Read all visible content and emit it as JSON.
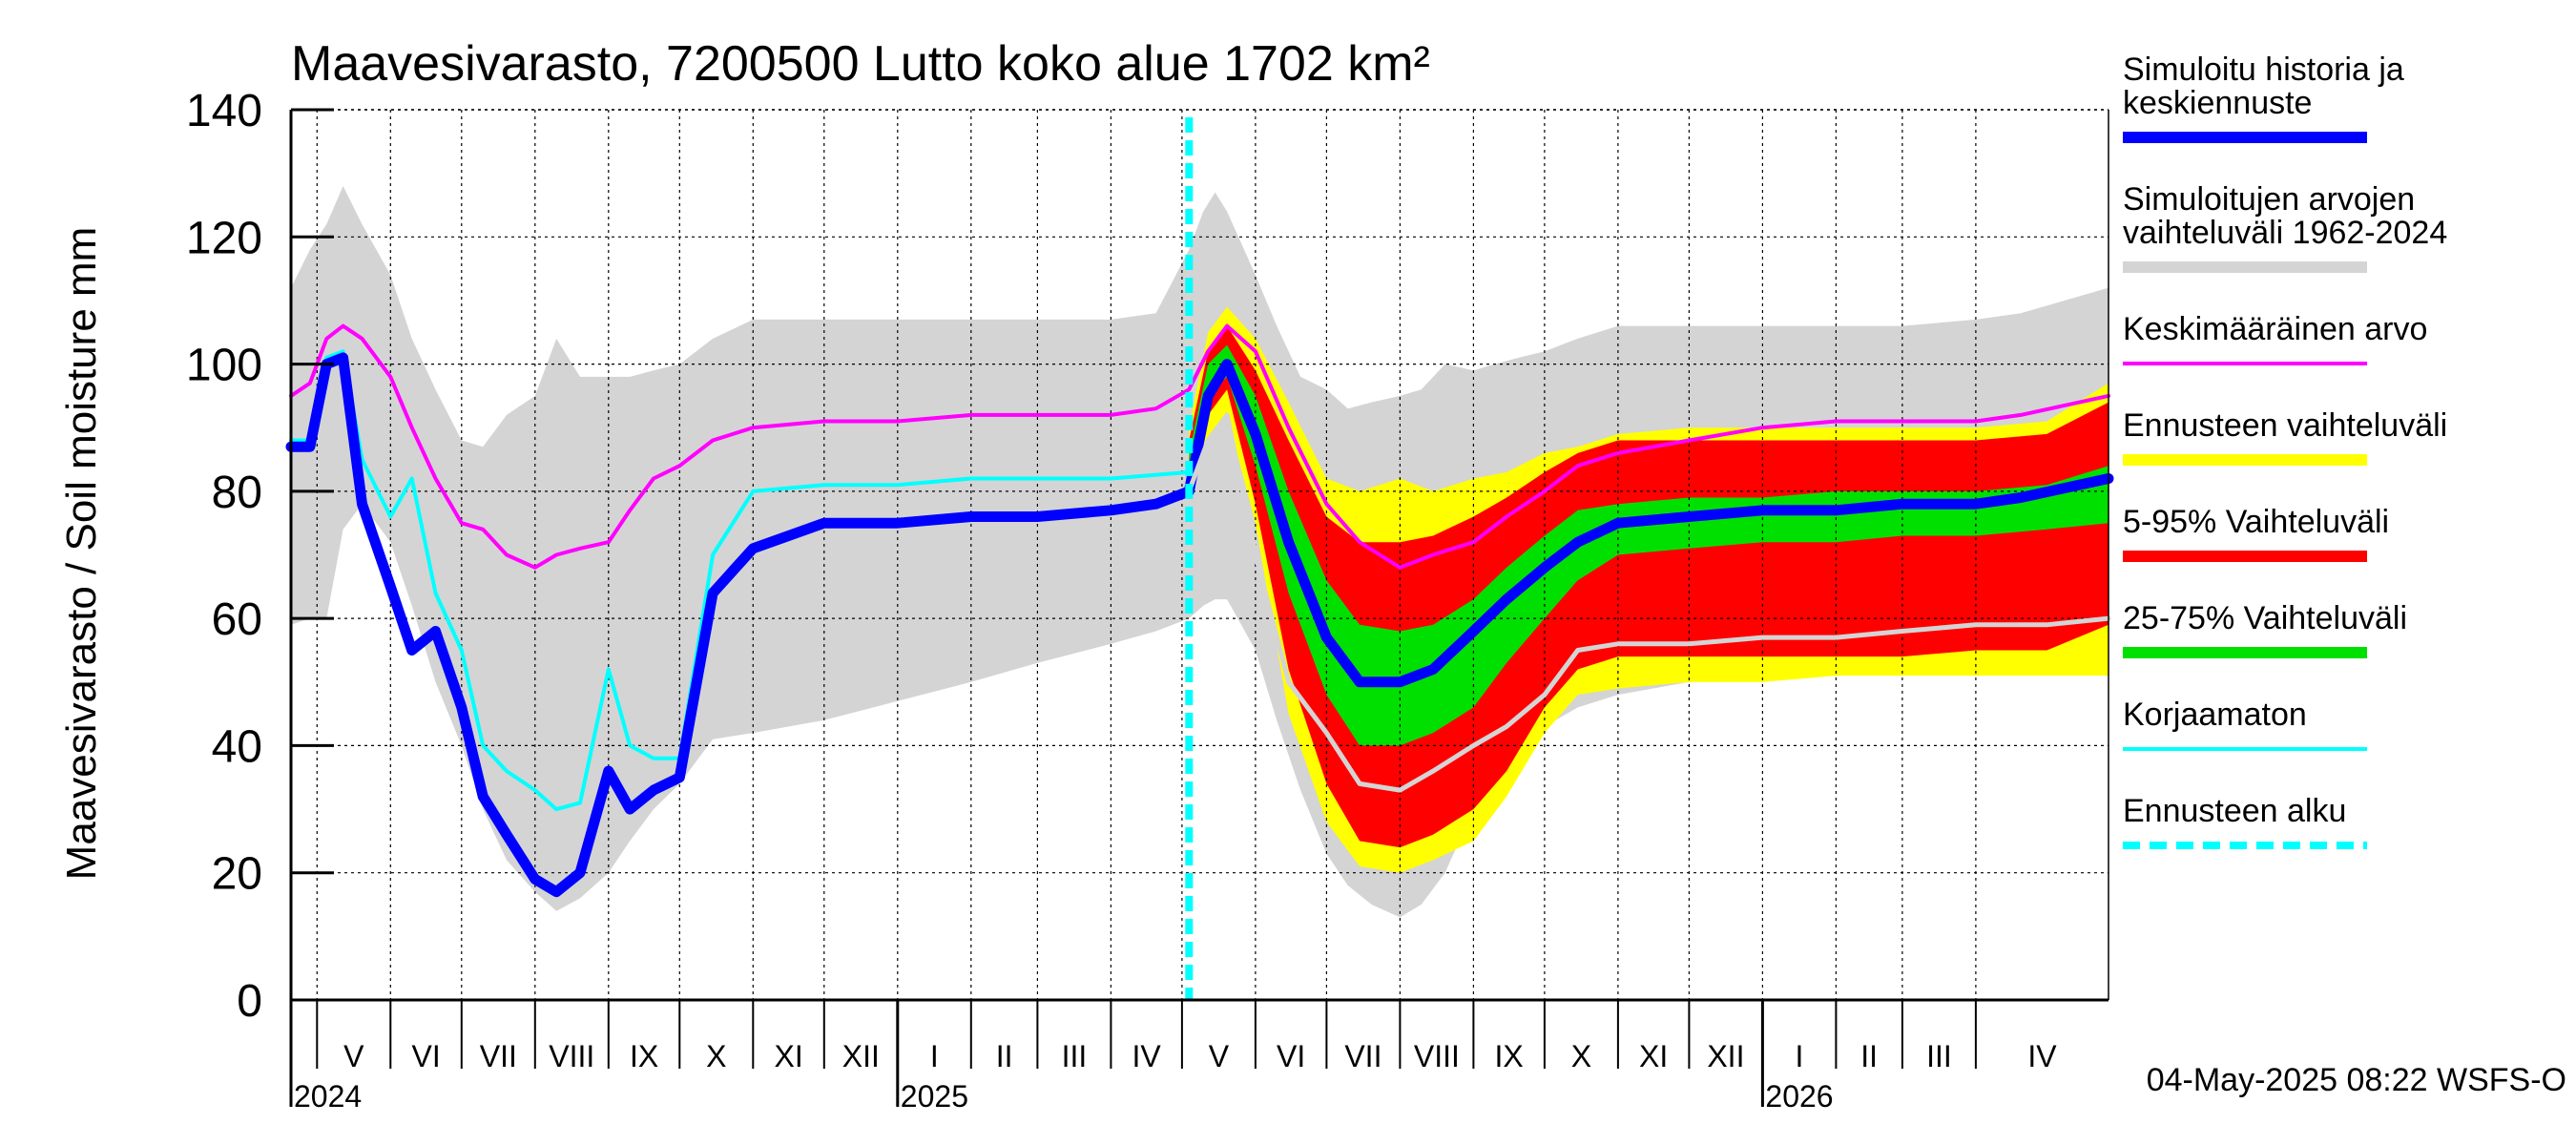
{
  "chart_data": {
    "type": "area",
    "title": "Maavesivarasto, 7200500 Lutto koko alue 1702 km²",
    "ylabel": "Maavesivarasto / Soil moisture   mm",
    "xlabel": "",
    "ylim": [
      0,
      140
    ],
    "yticks": [
      0,
      20,
      40,
      60,
      80,
      100,
      120,
      140
    ],
    "grid": true,
    "legend_position": "right",
    "x_axis": {
      "start": "2024-04-20",
      "end": "2026-05-27",
      "months": [
        {
          "label": "V",
          "date": "2024-05-01"
        },
        {
          "label": "VI",
          "date": "2024-06-01"
        },
        {
          "label": "VII",
          "date": "2024-07-01"
        },
        {
          "label": "VIII",
          "date": "2024-08-01"
        },
        {
          "label": "IX",
          "date": "2024-09-01"
        },
        {
          "label": "X",
          "date": "2024-10-01"
        },
        {
          "label": "XI",
          "date": "2024-11-01"
        },
        {
          "label": "XII",
          "date": "2024-12-01"
        },
        {
          "label": "I",
          "date": "2025-01-01"
        },
        {
          "label": "II",
          "date": "2025-02-01"
        },
        {
          "label": "III",
          "date": "2025-03-01"
        },
        {
          "label": "IV",
          "date": "2025-04-01"
        },
        {
          "label": "V",
          "date": "2025-05-01"
        },
        {
          "label": "VI",
          "date": "2025-06-01"
        },
        {
          "label": "VII",
          "date": "2025-07-01"
        },
        {
          "label": "VIII",
          "date": "2025-08-01"
        },
        {
          "label": "IX",
          "date": "2025-09-01"
        },
        {
          "label": "X",
          "date": "2025-10-01"
        },
        {
          "label": "XI",
          "date": "2025-11-01"
        },
        {
          "label": "XII",
          "date": "2025-12-01"
        },
        {
          "label": "I",
          "date": "2026-01-01"
        },
        {
          "label": "II",
          "date": "2026-02-01"
        },
        {
          "label": "III",
          "date": "2026-03-01"
        },
        {
          "label": "IV",
          "date": "2026-04-01"
        }
      ],
      "years": [
        {
          "label": "2024",
          "date": "2024-04-20"
        },
        {
          "label": "2025",
          "date": "2025-01-01"
        },
        {
          "label": "2026",
          "date": "2026-01-01"
        }
      ]
    },
    "forecast_start": "2025-05-04",
    "series": [
      {
        "name": "Simuloitujen arvojen vaihteluväli 1962-2024",
        "kind": "band",
        "color": "#d4d4d4",
        "x": [
          "2024-04-20",
          "2024-04-28",
          "2024-05-05",
          "2024-05-12",
          "2024-05-20",
          "2024-06-01",
          "2024-06-10",
          "2024-06-20",
          "2024-07-01",
          "2024-07-10",
          "2024-07-20",
          "2024-08-01",
          "2024-08-10",
          "2024-08-20",
          "2024-09-01",
          "2024-09-10",
          "2024-09-20",
          "2024-10-01",
          "2024-10-15",
          "2024-11-01",
          "2024-12-01",
          "2025-01-01",
          "2025-02-01",
          "2025-03-01",
          "2025-04-01",
          "2025-04-20",
          "2025-05-04",
          "2025-05-10",
          "2025-05-15",
          "2025-05-20",
          "2025-06-01",
          "2025-06-10",
          "2025-06-20",
          "2025-07-01",
          "2025-07-10",
          "2025-07-20",
          "2025-08-01",
          "2025-08-10",
          "2025-08-20",
          "2025-09-01",
          "2025-09-10",
          "2025-09-20",
          "2025-10-01",
          "2025-10-15",
          "2025-11-01",
          "2025-12-01",
          "2026-01-01",
          "2026-02-01",
          "2026-03-01",
          "2026-04-01",
          "2026-04-20",
          "2026-05-27"
        ],
        "lower": [
          59,
          60,
          60,
          74,
          78,
          72,
          62,
          50,
          40,
          30,
          22,
          17,
          14,
          16,
          20,
          25,
          30,
          34,
          41,
          42,
          44,
          47,
          50,
          53,
          56,
          58,
          60,
          62,
          63,
          63,
          55,
          44,
          33,
          23,
          18,
          15,
          13,
          15,
          20,
          30,
          36,
          40,
          43,
          46,
          48,
          50,
          51,
          52,
          54,
          56,
          58,
          60
        ],
        "upper": [
          112,
          118,
          122,
          128,
          122,
          114,
          104,
          96,
          88,
          87,
          92,
          95,
          104,
          98,
          98,
          98,
          99,
          100,
          104,
          107,
          107,
          107,
          107,
          107,
          107,
          108,
          118,
          124,
          127,
          124,
          114,
          106,
          98,
          96,
          93,
          94,
          95,
          96,
          100,
          99,
          100,
          101,
          102,
          104,
          106,
          106,
          106,
          106,
          106,
          107,
          108,
          112
        ]
      },
      {
        "name": "Ennusteen vaihteluväli",
        "kind": "band",
        "color": "#ffff00",
        "x": [
          "2025-05-04",
          "2025-05-12",
          "2025-05-20",
          "2025-06-01",
          "2025-06-15",
          "2025-07-01",
          "2025-07-15",
          "2025-08-01",
          "2025-08-15",
          "2025-09-01",
          "2025-09-15",
          "2025-10-01",
          "2025-10-15",
          "2025-11-01",
          "2025-12-01",
          "2026-01-01",
          "2026-02-01",
          "2026-03-01",
          "2026-04-01",
          "2026-05-01",
          "2026-05-27"
        ],
        "lower": [
          80,
          88,
          92,
          75,
          45,
          28,
          21,
          20,
          22,
          25,
          32,
          42,
          48,
          49,
          50,
          50,
          51,
          51,
          51,
          51,
          51
        ],
        "upper": [
          90,
          105,
          109,
          104,
          94,
          82,
          80,
          82,
          80,
          82,
          83,
          86,
          87,
          89,
          90,
          90,
          90,
          90,
          90,
          91,
          97
        ]
      },
      {
        "name": "5-95% Vaihteluväli",
        "kind": "band",
        "color": "#ff0000",
        "x": [
          "2025-05-04",
          "2025-05-12",
          "2025-05-20",
          "2025-06-01",
          "2025-06-15",
          "2025-07-01",
          "2025-07-15",
          "2025-08-01",
          "2025-08-15",
          "2025-09-01",
          "2025-09-15",
          "2025-10-01",
          "2025-10-15",
          "2025-11-01",
          "2025-12-01",
          "2026-01-01",
          "2026-02-01",
          "2026-03-01",
          "2026-04-01",
          "2026-05-01",
          "2026-05-27"
        ],
        "lower": [
          84,
          92,
          96,
          78,
          52,
          34,
          25,
          24,
          26,
          30,
          36,
          46,
          52,
          54,
          54,
          54,
          54,
          54,
          55,
          55,
          59
        ],
        "upper": [
          88,
          102,
          106,
          99,
          88,
          76,
          72,
          72,
          73,
          76,
          79,
          83,
          86,
          88,
          88,
          88,
          88,
          88,
          88,
          89,
          94
        ]
      },
      {
        "name": "25-75% Vaihteluväli",
        "kind": "band",
        "color": "#00e000",
        "x": [
          "2025-05-04",
          "2025-05-12",
          "2025-05-20",
          "2025-06-01",
          "2025-06-15",
          "2025-07-01",
          "2025-07-15",
          "2025-08-01",
          "2025-08-15",
          "2025-09-01",
          "2025-09-15",
          "2025-10-01",
          "2025-10-15",
          "2025-11-01",
          "2025-12-01",
          "2026-01-01",
          "2026-02-01",
          "2026-03-01",
          "2026-04-01",
          "2026-05-01",
          "2026-05-27"
        ],
        "lower": [
          84,
          95,
          98,
          84,
          64,
          48,
          40,
          40,
          42,
          46,
          53,
          60,
          66,
          70,
          71,
          72,
          72,
          73,
          73,
          74,
          75
        ],
        "upper": [
          86,
          100,
          103,
          95,
          80,
          66,
          59,
          58,
          59,
          63,
          68,
          73,
          77,
          78,
          79,
          79,
          80,
          80,
          80,
          81,
          84
        ]
      },
      {
        "name": "Keskimääräinen arvo",
        "kind": "line",
        "color": "#ff00ff",
        "x": [
          "2024-04-20",
          "2024-04-28",
          "2024-05-05",
          "2024-05-12",
          "2024-05-20",
          "2024-06-01",
          "2024-06-10",
          "2024-06-20",
          "2024-07-01",
          "2024-07-10",
          "2024-07-20",
          "2024-08-01",
          "2024-08-10",
          "2024-08-20",
          "2024-09-01",
          "2024-09-10",
          "2024-09-20",
          "2024-10-01",
          "2024-10-15",
          "2024-11-01",
          "2024-12-01",
          "2025-01-01",
          "2025-02-01",
          "2025-03-01",
          "2025-04-01",
          "2025-04-20",
          "2025-05-04",
          "2025-05-12",
          "2025-05-20",
          "2025-06-01",
          "2025-06-15",
          "2025-07-01",
          "2025-07-15",
          "2025-08-01",
          "2025-08-15",
          "2025-09-01",
          "2025-09-15",
          "2025-10-01",
          "2025-10-15",
          "2025-11-01",
          "2025-12-01",
          "2026-01-01",
          "2026-02-01",
          "2026-03-01",
          "2026-04-01",
          "2026-04-20",
          "2026-05-27"
        ],
        "y": [
          95,
          97,
          104,
          106,
          104,
          98,
          90,
          82,
          75,
          74,
          70,
          68,
          70,
          71,
          72,
          77,
          82,
          84,
          88,
          90,
          91,
          91,
          92,
          92,
          92,
          93,
          96,
          102,
          106,
          102,
          90,
          78,
          72,
          68,
          70,
          72,
          76,
          80,
          84,
          86,
          88,
          90,
          91,
          91,
          91,
          92,
          95
        ]
      },
      {
        "name": "Korjaamaton",
        "kind": "line",
        "color": "#00ffff",
        "x": [
          "2024-04-20",
          "2024-04-28",
          "2024-05-05",
          "2024-05-12",
          "2024-05-20",
          "2024-06-01",
          "2024-06-10",
          "2024-06-20",
          "2024-07-01",
          "2024-07-10",
          "2024-07-20",
          "2024-08-01",
          "2024-08-10",
          "2024-08-20",
          "2024-09-01",
          "2024-09-10",
          "2024-09-20",
          "2024-10-01",
          "2024-10-15",
          "2024-11-01",
          "2024-12-01",
          "2025-01-01",
          "2025-02-01",
          "2025-03-01",
          "2025-04-01",
          "2025-05-04"
        ],
        "y": [
          88,
          88,
          101,
          102,
          85,
          76,
          82,
          64,
          55,
          40,
          36,
          33,
          30,
          31,
          52,
          40,
          38,
          38,
          70,
          80,
          81,
          81,
          82,
          82,
          82,
          83
        ]
      },
      {
        "name": "Simuloitu historia ja keskiennuste",
        "kind": "line",
        "color": "#0000ff",
        "x": [
          "2024-04-20",
          "2024-04-28",
          "2024-05-05",
          "2024-05-12",
          "2024-05-20",
          "2024-06-01",
          "2024-06-10",
          "2024-06-20",
          "2024-07-01",
          "2024-07-10",
          "2024-07-20",
          "2024-08-01",
          "2024-08-10",
          "2024-08-20",
          "2024-09-01",
          "2024-09-10",
          "2024-09-20",
          "2024-10-01",
          "2024-10-15",
          "2024-11-01",
          "2024-12-01",
          "2025-01-01",
          "2025-02-01",
          "2025-03-01",
          "2025-04-01",
          "2025-04-20",
          "2025-05-04",
          "2025-05-12",
          "2025-05-20",
          "2025-06-01",
          "2025-06-15",
          "2025-07-01",
          "2025-07-15",
          "2025-08-01",
          "2025-08-15",
          "2025-09-01",
          "2025-09-15",
          "2025-10-01",
          "2025-10-15",
          "2025-11-01",
          "2025-12-01",
          "2026-01-01",
          "2026-02-01",
          "2026-03-01",
          "2026-04-01",
          "2026-04-20",
          "2026-05-27"
        ],
        "y": [
          87,
          87,
          100,
          101,
          78,
          65,
          55,
          58,
          46,
          32,
          26,
          19,
          17,
          20,
          36,
          30,
          33,
          35,
          64,
          71,
          75,
          75,
          76,
          76,
          77,
          78,
          80,
          95,
          100,
          89,
          72,
          57,
          50,
          50,
          52,
          58,
          63,
          68,
          72,
          75,
          76,
          77,
          77,
          78,
          78,
          79,
          82
        ]
      },
      {
        "name": "",
        "kind": "line",
        "color": "#d4d4d4",
        "x": [
          "2025-05-04",
          "2025-05-12",
          "2025-05-20",
          "2025-06-01",
          "2025-06-15",
          "2025-07-01",
          "2025-07-15",
          "2025-08-01",
          "2025-08-15",
          "2025-09-01",
          "2025-09-15",
          "2025-10-01",
          "2025-10-15",
          "2025-11-01",
          "2025-12-01",
          "2026-01-01",
          "2026-02-01",
          "2026-03-01",
          "2026-04-01",
          "2026-05-01",
          "2026-05-27"
        ],
        "y": [
          80,
          88,
          92,
          70,
          50,
          42,
          34,
          33,
          36,
          40,
          43,
          48,
          55,
          56,
          56,
          57,
          57,
          58,
          59,
          59,
          60
        ]
      }
    ],
    "legend": [
      {
        "label_lines": [
          "Simuloitu historia ja",
          "keskiennuste"
        ],
        "color": "#0000ff",
        "style": "thick"
      },
      {
        "label_lines": [
          "Simuloitujen arvojen",
          "vaihteluväli 1962-2024"
        ],
        "color": "#d4d4d4",
        "style": "thick"
      },
      {
        "label_lines": [
          "Keskimääräinen arvo"
        ],
        "color": "#ff00ff",
        "style": "thin"
      },
      {
        "label_lines": [
          "Ennusteen vaihteluväli"
        ],
        "color": "#ffff00",
        "style": "thick"
      },
      {
        "label_lines": [
          "5-95% Vaihteluväli"
        ],
        "color": "#ff0000",
        "style": "thick"
      },
      {
        "label_lines": [
          "25-75% Vaihteluväli"
        ],
        "color": "#00e000",
        "style": "thick"
      },
      {
        "label_lines": [
          "Korjaamaton"
        ],
        "color": "#00ffff",
        "style": "thin"
      },
      {
        "label_lines": [
          "Ennusteen alku"
        ],
        "color": "#00ffff",
        "style": "dashed"
      }
    ],
    "footer": "04-May-2025 08:22 WSFS-O"
  }
}
